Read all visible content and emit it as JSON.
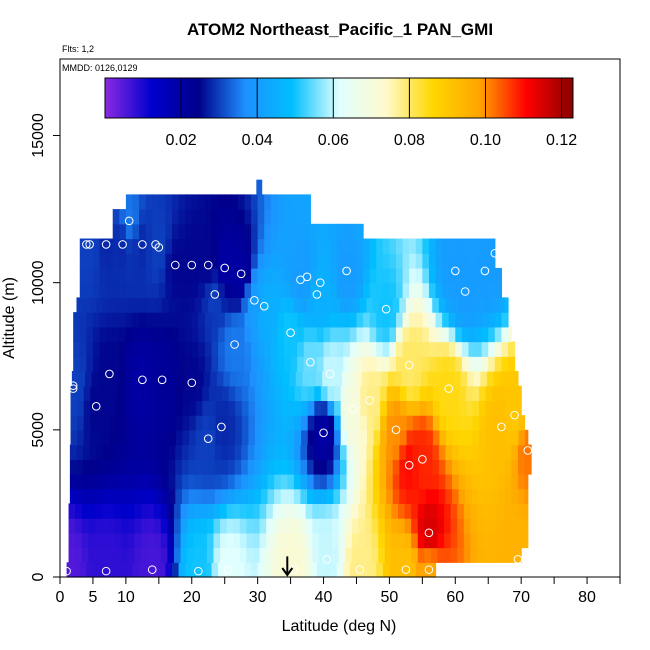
{
  "chart_data": {
    "type": "heatmap",
    "title": "ATOM2 Northeast_Pacific_1 PAN_GMI",
    "annotations": [
      "Flts: 1,2",
      "MMDD: 0126,0129"
    ],
    "xlabel": "Latitude (deg N)",
    "ylabel": "Altitude (m)",
    "xlim": [
      0,
      85
    ],
    "ylim": [
      0,
      17600
    ],
    "x_ticks": [
      0,
      5,
      10,
      15,
      20,
      25,
      30,
      35,
      40,
      45,
      50,
      55,
      60,
      65,
      70,
      75,
      80,
      85
    ],
    "x_tick_labels": [
      "0",
      "5",
      "10",
      "",
      "20",
      "",
      "30",
      "",
      "40",
      "",
      "50",
      "",
      "60",
      "",
      "70",
      "",
      "80",
      ""
    ],
    "y_ticks": [
      0,
      5000,
      10000,
      15000
    ],
    "y_tick_labels": [
      "0",
      "5000",
      "10000",
      "15000"
    ],
    "colorbar": {
      "range": [
        0.0,
        0.123
      ],
      "ticks": [
        0.02,
        0.04,
        0.06,
        0.08,
        0.1,
        0.12
      ],
      "tick_labels": [
        "0.02",
        "0.04",
        "0.06",
        "0.08",
        "0.10",
        "0.12"
      ],
      "colors": [
        "#8a2be2",
        "#0000cd",
        "#00008b",
        "#1e90ff",
        "#00bfff",
        "#e0ffff",
        "#fffacd",
        "#ffd700",
        "#ffa500",
        "#ff0000",
        "#8b0000"
      ]
    },
    "curtain_altitudes_m": [
      0,
      250,
      500,
      1000,
      1500,
      2000,
      2500,
      3000,
      3500,
      4000,
      4500,
      5000,
      5500,
      6000,
      6500,
      7000,
      7500,
      8000,
      8500,
      9000,
      9500,
      10000,
      10500,
      11000,
      11500,
      12000,
      12500,
      13000
    ],
    "curtain_extent_lat": [
      [
        1.0,
        57
      ],
      [
        1.0,
        57
      ],
      [
        1.3,
        70
      ],
      [
        1.3,
        71
      ],
      [
        1.3,
        71
      ],
      [
        1.3,
        71
      ],
      [
        1.5,
        71
      ],
      [
        1.5,
        71
      ],
      [
        1.5,
        71.5
      ],
      [
        1.5,
        71.5
      ],
      [
        1.6,
        71
      ],
      [
        1.6,
        70.5
      ],
      [
        1.6,
        70
      ],
      [
        1.6,
        70
      ],
      [
        1.8,
        69.5
      ],
      [
        2,
        69
      ],
      [
        2,
        69
      ],
      [
        2,
        68.5
      ],
      [
        2,
        68
      ],
      [
        2.5,
        68
      ],
      [
        3,
        67
      ],
      [
        3,
        67
      ],
      [
        3,
        66
      ],
      [
        3,
        66
      ],
      [
        8,
        46
      ],
      [
        8,
        38
      ],
      [
        10,
        38
      ],
      [
        29.8,
        30.6
      ]
    ],
    "samples": [
      {
        "lat": 1.0,
        "alt": 200,
        "val": 0.005
      },
      {
        "lat": 7.0,
        "alt": 200,
        "val": 0.008
      },
      {
        "lat": 14.0,
        "alt": 250,
        "val": 0.006
      },
      {
        "lat": 21.0,
        "alt": 200,
        "val": 0.05
      },
      {
        "lat": 25.5,
        "alt": 250,
        "val": 0.062
      },
      {
        "lat": 35.5,
        "alt": 250,
        "val": 0.072
      },
      {
        "lat": 45.5,
        "alt": 250,
        "val": 0.078
      },
      {
        "lat": 52.5,
        "alt": 250,
        "val": 0.092
      },
      {
        "lat": 56.0,
        "alt": 250,
        "val": 0.098
      },
      {
        "lat": 40.5,
        "alt": 600,
        "val": 0.06
      },
      {
        "lat": 69.5,
        "alt": 600,
        "val": 0.095
      },
      {
        "lat": 56.0,
        "alt": 1500,
        "val": 0.115
      },
      {
        "lat": 53.0,
        "alt": 3800,
        "val": 0.11
      },
      {
        "lat": 55.0,
        "alt": 4000,
        "val": 0.108
      },
      {
        "lat": 71.0,
        "alt": 4300,
        "val": 0.102
      },
      {
        "lat": 22.5,
        "alt": 4700,
        "val": 0.03
      },
      {
        "lat": 24.5,
        "alt": 5100,
        "val": 0.028
      },
      {
        "lat": 40.0,
        "alt": 4900,
        "val": 0.02
      },
      {
        "lat": 51.0,
        "alt": 5000,
        "val": 0.1
      },
      {
        "lat": 69.0,
        "alt": 5500,
        "val": 0.09
      },
      {
        "lat": 5.5,
        "alt": 5800,
        "val": 0.025
      },
      {
        "lat": 44.5,
        "alt": 5700,
        "val": 0.07
      },
      {
        "lat": 47.0,
        "alt": 6000,
        "val": 0.078
      },
      {
        "lat": 2.0,
        "alt": 6400,
        "val": 0.03
      },
      {
        "lat": 2.0,
        "alt": 6500,
        "val": 0.03
      },
      {
        "lat": 12.5,
        "alt": 6700,
        "val": 0.02
      },
      {
        "lat": 15.5,
        "alt": 6700,
        "val": 0.022
      },
      {
        "lat": 20.0,
        "alt": 6600,
        "val": 0.025
      },
      {
        "lat": 7.5,
        "alt": 6900,
        "val": 0.025
      },
      {
        "lat": 41.0,
        "alt": 6900,
        "val": 0.06
      },
      {
        "lat": 53.0,
        "alt": 7200,
        "val": 0.08
      },
      {
        "lat": 59.0,
        "alt": 6400,
        "val": 0.085
      },
      {
        "lat": 38.0,
        "alt": 7300,
        "val": 0.055
      },
      {
        "lat": 67.0,
        "alt": 5100,
        "val": 0.092
      },
      {
        "lat": 26.5,
        "alt": 7900,
        "val": 0.035
      },
      {
        "lat": 35.0,
        "alt": 8300,
        "val": 0.05
      },
      {
        "lat": 31.0,
        "alt": 9200,
        "val": 0.045
      },
      {
        "lat": 49.5,
        "alt": 9100,
        "val": 0.05
      },
      {
        "lat": 29.5,
        "alt": 9400,
        "val": 0.04
      },
      {
        "lat": 23.5,
        "alt": 9600,
        "val": 0.03
      },
      {
        "lat": 39.0,
        "alt": 9600,
        "val": 0.045
      },
      {
        "lat": 36.5,
        "alt": 10100,
        "val": 0.04
      },
      {
        "lat": 37.5,
        "alt": 10200,
        "val": 0.04
      },
      {
        "lat": 39.5,
        "alt": 10000,
        "val": 0.045
      },
      {
        "lat": 61.5,
        "alt": 9700,
        "val": 0.04
      },
      {
        "lat": 27.5,
        "alt": 10300,
        "val": 0.02
      },
      {
        "lat": 43.5,
        "alt": 10400,
        "val": 0.04
      },
      {
        "lat": 60.0,
        "alt": 10400,
        "val": 0.04
      },
      {
        "lat": 64.5,
        "alt": 10400,
        "val": 0.04
      },
      {
        "lat": 17.5,
        "alt": 10600,
        "val": 0.025
      },
      {
        "lat": 20.0,
        "alt": 10600,
        "val": 0.025
      },
      {
        "lat": 22.5,
        "alt": 10600,
        "val": 0.025
      },
      {
        "lat": 25.0,
        "alt": 10500,
        "val": 0.02
      },
      {
        "lat": 4.0,
        "alt": 11300,
        "val": 0.03
      },
      {
        "lat": 4.5,
        "alt": 11300,
        "val": 0.03
      },
      {
        "lat": 7.0,
        "alt": 11300,
        "val": 0.028
      },
      {
        "lat": 9.5,
        "alt": 11300,
        "val": 0.028
      },
      {
        "lat": 12.5,
        "alt": 11300,
        "val": 0.028
      },
      {
        "lat": 14.5,
        "alt": 11300,
        "val": 0.03
      },
      {
        "lat": 15.0,
        "alt": 11200,
        "val": 0.03
      },
      {
        "lat": 66.0,
        "alt": 11000,
        "val": 0.04
      },
      {
        "lat": 10.5,
        "alt": 12100,
        "val": 0.035
      }
    ],
    "marker": {
      "type": "arrow",
      "lat": 34.5,
      "alt": 700
    }
  }
}
